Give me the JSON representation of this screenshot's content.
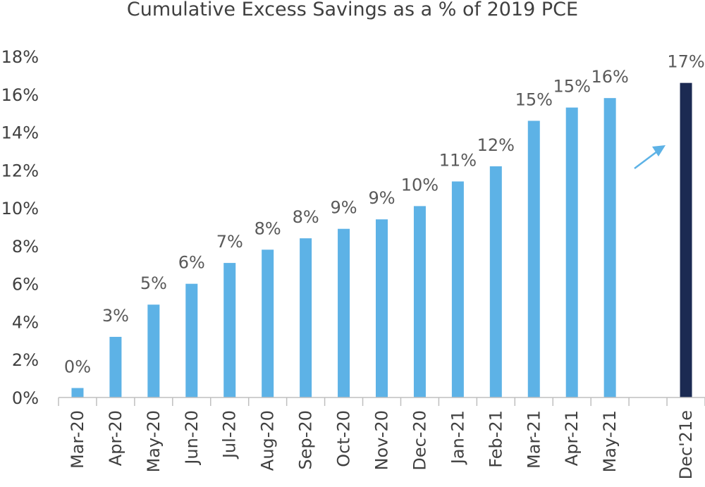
{
  "chart_data": {
    "type": "bar",
    "title": "Cumulative Excess Savings as a % of 2019 PCE",
    "xlabel": "",
    "ylabel": "",
    "ylim": [
      0,
      18
    ],
    "yticks": [
      "0%",
      "2%",
      "4%",
      "6%",
      "8%",
      "10%",
      "12%",
      "14%",
      "16%",
      "18%"
    ],
    "categories": [
      "Mar-20",
      "Apr-20",
      "May-20",
      "Jun-20",
      "Jul-20",
      "Aug-20",
      "Sep-20",
      "Oct-20",
      "Nov-20",
      "Dec-20",
      "Jan-21",
      "Feb-21",
      "Mar-21",
      "Apr-21",
      "May-21",
      "",
      "Dec'21e"
    ],
    "values": [
      0.5,
      3.2,
      4.9,
      6.0,
      7.1,
      7.8,
      8.4,
      8.9,
      9.4,
      10.1,
      11.4,
      12.2,
      14.6,
      15.3,
      15.8,
      null,
      16.6
    ],
    "data_labels": [
      "0%",
      "3%",
      "5%",
      "6%",
      "7%",
      "8%",
      "8%",
      "9%",
      "9%",
      "10%",
      "11%",
      "12%",
      "15%",
      "15%",
      "16%",
      "",
      "17%"
    ],
    "colors": {
      "actual": "#5DB2E6",
      "estimate": "#1B2A52",
      "arrow": "#5DB2E6",
      "axis": "#BFBFBF"
    },
    "estimate_index": 16,
    "annotations": [
      {
        "type": "arrow",
        "icon": "up-right-arrow-icon"
      }
    ],
    "grid": false,
    "legend": "none"
  }
}
